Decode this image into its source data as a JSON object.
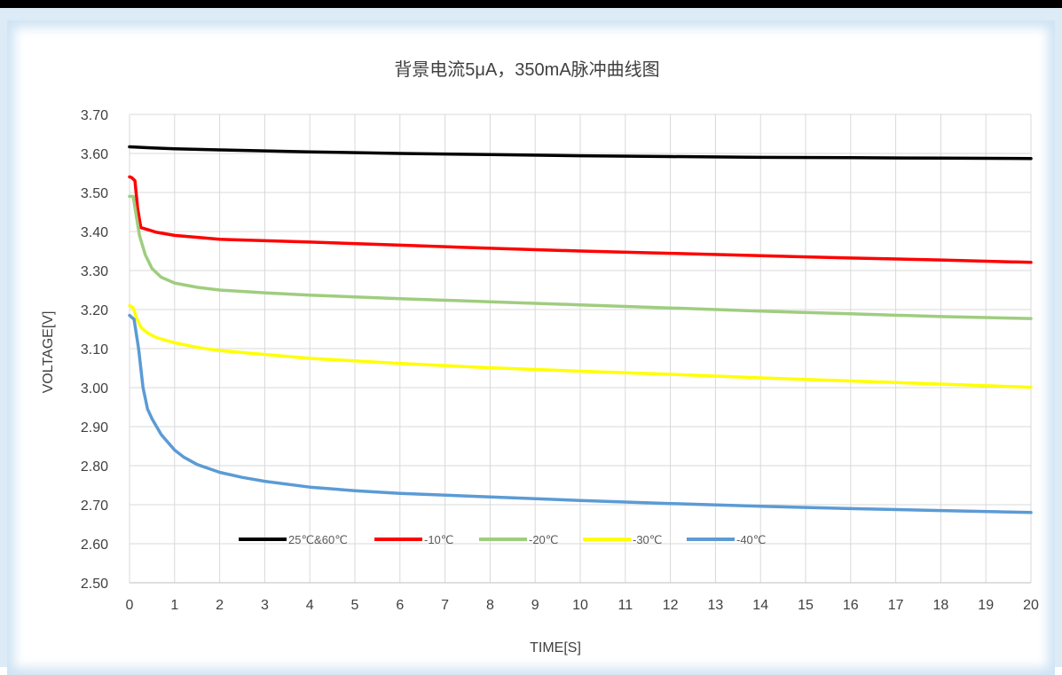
{
  "chart_data": {
    "type": "line",
    "title": "背景电流5μA，350mA脉冲曲线图",
    "xlabel": "TIME[S]",
    "ylabel": "VOLTAGE[V]",
    "xlim": [
      0,
      20
    ],
    "ylim": [
      2.5,
      3.7
    ],
    "x_ticks": [
      "0",
      "1",
      "2",
      "3",
      "4",
      "5",
      "6",
      "7",
      "8",
      "9",
      "10",
      "11",
      "12",
      "13",
      "14",
      "15",
      "16",
      "17",
      "18",
      "19",
      "20"
    ],
    "y_ticks": [
      "2.50",
      "2.60",
      "2.70",
      "2.80",
      "2.90",
      "3.00",
      "3.10",
      "3.20",
      "3.30",
      "3.40",
      "3.50",
      "3.60",
      "3.70"
    ],
    "grid": true,
    "legend_position": "bottom-left-inside",
    "series": [
      {
        "name": "25℃&60℃",
        "color": "#000000",
        "points": [
          [
            0,
            3.617
          ],
          [
            0.5,
            3.614
          ],
          [
            1,
            3.612
          ],
          [
            2,
            3.609
          ],
          [
            4,
            3.604
          ],
          [
            6,
            3.6
          ],
          [
            8,
            3.597
          ],
          [
            10,
            3.594
          ],
          [
            12,
            3.592
          ],
          [
            14,
            3.59
          ],
          [
            16,
            3.589
          ],
          [
            18,
            3.588
          ],
          [
            20,
            3.587
          ]
        ]
      },
      {
        "name": "-10℃",
        "color": "#ff0000",
        "points": [
          [
            0,
            3.54
          ],
          [
            0.05,
            3.538
          ],
          [
            0.12,
            3.53
          ],
          [
            0.18,
            3.46
          ],
          [
            0.25,
            3.41
          ],
          [
            0.4,
            3.405
          ],
          [
            0.6,
            3.398
          ],
          [
            1,
            3.39
          ],
          [
            2,
            3.38
          ],
          [
            4,
            3.373
          ],
          [
            6,
            3.365
          ],
          [
            8,
            3.357
          ],
          [
            10,
            3.35
          ],
          [
            12,
            3.344
          ],
          [
            14,
            3.338
          ],
          [
            16,
            3.332
          ],
          [
            18,
            3.327
          ],
          [
            20,
            3.321
          ]
        ]
      },
      {
        "name": "-20℃",
        "color": "#9fcd7f",
        "points": [
          [
            0,
            3.49
          ],
          [
            0.08,
            3.49
          ],
          [
            0.15,
            3.44
          ],
          [
            0.22,
            3.39
          ],
          [
            0.35,
            3.34
          ],
          [
            0.5,
            3.305
          ],
          [
            0.7,
            3.283
          ],
          [
            1,
            3.268
          ],
          [
            1.5,
            3.257
          ],
          [
            2,
            3.25
          ],
          [
            3,
            3.243
          ],
          [
            4,
            3.237
          ],
          [
            6,
            3.228
          ],
          [
            8,
            3.22
          ],
          [
            10,
            3.212
          ],
          [
            12,
            3.204
          ],
          [
            14,
            3.196
          ],
          [
            16,
            3.189
          ],
          [
            18,
            3.182
          ],
          [
            20,
            3.177
          ]
        ]
      },
      {
        "name": "-30℃",
        "color": "#ffff00",
        "points": [
          [
            0,
            3.21
          ],
          [
            0.08,
            3.205
          ],
          [
            0.15,
            3.18
          ],
          [
            0.25,
            3.155
          ],
          [
            0.4,
            3.14
          ],
          [
            0.6,
            3.128
          ],
          [
            1,
            3.115
          ],
          [
            1.5,
            3.103
          ],
          [
            2,
            3.095
          ],
          [
            3,
            3.085
          ],
          [
            4,
            3.075
          ],
          [
            6,
            3.062
          ],
          [
            8,
            3.051
          ],
          [
            10,
            3.042
          ],
          [
            12,
            3.034
          ],
          [
            14,
            3.025
          ],
          [
            16,
            3.017
          ],
          [
            18,
            3.009
          ],
          [
            20,
            3.001
          ]
        ]
      },
      {
        "name": "-40℃",
        "color": "#5b9bd5",
        "points": [
          [
            0,
            3.185
          ],
          [
            0.1,
            3.175
          ],
          [
            0.2,
            3.1
          ],
          [
            0.3,
            3.0
          ],
          [
            0.4,
            2.945
          ],
          [
            0.5,
            2.92
          ],
          [
            0.6,
            2.9
          ],
          [
            0.7,
            2.88
          ],
          [
            0.85,
            2.86
          ],
          [
            1,
            2.84
          ],
          [
            1.2,
            2.822
          ],
          [
            1.5,
            2.803
          ],
          [
            2,
            2.783
          ],
          [
            2.5,
            2.77
          ],
          [
            3,
            2.76
          ],
          [
            4,
            2.745
          ],
          [
            5,
            2.736
          ],
          [
            6,
            2.729
          ],
          [
            8,
            2.72
          ],
          [
            10,
            2.711
          ],
          [
            12,
            2.703
          ],
          [
            14,
            2.696
          ],
          [
            16,
            2.69
          ],
          [
            18,
            2.685
          ],
          [
            20,
            2.68
          ]
        ]
      }
    ]
  }
}
